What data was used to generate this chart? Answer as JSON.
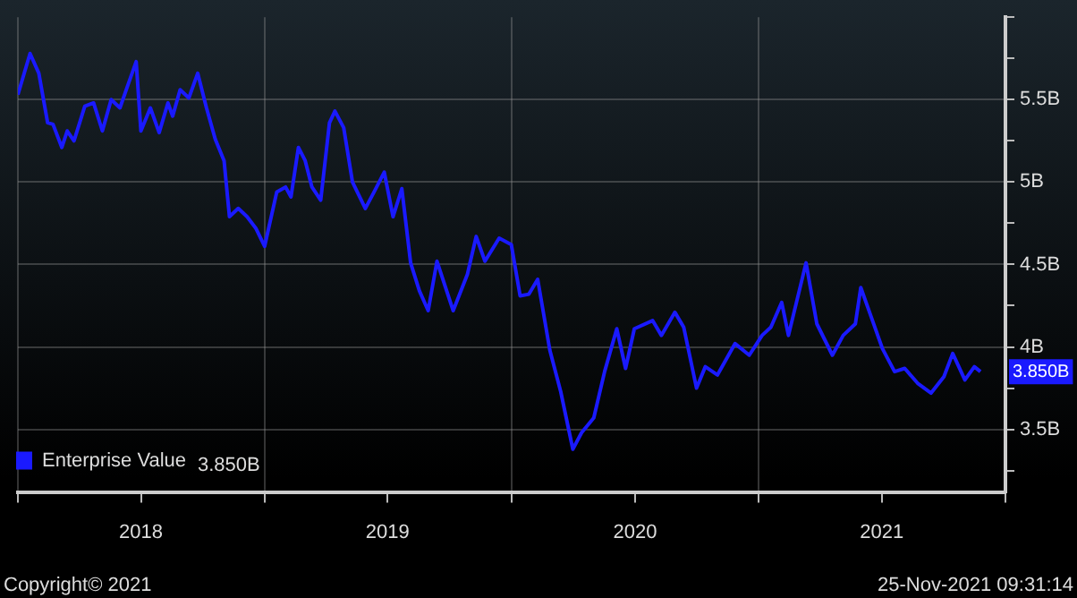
{
  "chart_data": {
    "type": "line",
    "annotations": [
      "Copyright© 2021",
      "25-Nov-2021 09:31:14"
    ],
    "x": [
      "2018-01-01",
      "2018-01-19",
      "2018-02-01",
      "2018-02-14",
      "2018-02-22",
      "2018-03-07",
      "2018-03-15",
      "2018-03-25",
      "2018-04-10",
      "2018-04-23",
      "2018-05-06",
      "2018-05-19",
      "2018-06-01",
      "2018-06-12",
      "2018-06-25",
      "2018-07-02",
      "2018-07-16",
      "2018-07-29",
      "2018-08-11",
      "2018-08-18",
      "2018-08-29",
      "2018-09-11",
      "2018-09-24",
      "2018-10-07",
      "2018-10-20",
      "2018-11-02",
      "2018-11-10",
      "2018-11-23",
      "2018-12-06",
      "2018-12-19",
      "2019-01-01",
      "2019-01-19",
      "2019-02-01",
      "2019-02-09",
      "2019-02-20",
      "2019-03-02",
      "2019-03-12",
      "2019-03-25",
      "2019-04-07",
      "2019-04-15",
      "2019-04-28",
      "2019-05-11",
      "2019-05-30",
      "2019-06-12",
      "2019-06-27",
      "2019-07-10",
      "2019-07-23",
      "2019-08-05",
      "2019-08-18",
      "2019-08-31",
      "2019-09-13",
      "2019-10-07",
      "2019-10-28",
      "2019-11-10",
      "2019-11-23",
      "2019-12-14",
      "2020-01-01",
      "2020-01-14",
      "2020-01-27",
      "2020-02-09",
      "2020-02-27",
      "2020-03-14",
      "2020-04-01",
      "2020-04-14",
      "2020-05-02",
      "2020-05-18",
      "2020-06-05",
      "2020-06-18",
      "2020-07-01",
      "2020-07-28",
      "2020-08-10",
      "2020-08-30",
      "2020-09-12",
      "2020-10-01",
      "2020-10-14",
      "2020-11-01",
      "2020-11-27",
      "2020-12-18",
      "2021-01-06",
      "2021-01-19",
      "2021-02-04",
      "2021-02-14",
      "2021-03-12",
      "2021-03-28",
      "2021-04-20",
      "2021-05-06",
      "2021-05-24",
      "2021-06-01",
      "2021-06-14",
      "2021-07-03",
      "2021-07-21",
      "2021-08-05",
      "2021-08-24",
      "2021-09-13",
      "2021-10-02",
      "2021-10-15",
      "2021-11-02",
      "2021-11-16",
      "2021-11-25"
    ],
    "series": [
      {
        "name": "Enterprise Value",
        "color": "#1a1aff",
        "values": [
          5.53,
          5.78,
          5.66,
          5.36,
          5.35,
          5.21,
          5.31,
          5.25,
          5.46,
          5.48,
          5.31,
          5.5,
          5.45,
          5.58,
          5.73,
          5.31,
          5.45,
          5.3,
          5.48,
          5.4,
          5.56,
          5.51,
          5.66,
          5.45,
          5.26,
          5.13,
          4.79,
          4.84,
          4.79,
          4.72,
          4.61,
          4.94,
          4.97,
          4.91,
          5.21,
          5.13,
          4.97,
          4.89,
          5.36,
          5.43,
          5.33,
          5.0,
          4.84,
          4.94,
          5.06,
          4.79,
          4.96,
          4.51,
          4.34,
          4.22,
          4.52,
          4.22,
          4.44,
          4.67,
          4.52,
          4.66,
          4.62,
          4.31,
          4.32,
          4.41,
          3.98,
          3.73,
          3.38,
          3.48,
          3.57,
          3.85,
          4.11,
          3.87,
          4.11,
          4.16,
          4.07,
          4.21,
          4.12,
          3.75,
          3.88,
          3.83,
          4.02,
          3.95,
          4.07,
          4.12,
          4.27,
          4.07,
          4.51,
          4.14,
          3.95,
          4.07,
          4.14,
          4.36,
          4.21,
          3.99,
          3.85,
          3.87,
          3.78,
          3.72,
          3.82,
          3.96,
          3.8,
          3.88,
          3.85
        ],
        "value_labels": [
          null,
          null,
          null,
          null,
          null,
          null,
          null,
          null,
          null,
          null,
          null,
          null,
          null,
          null,
          null,
          null,
          null,
          null,
          null,
          null,
          null,
          null,
          null,
          null,
          null,
          null,
          null,
          null,
          null,
          null,
          null,
          null,
          null,
          null,
          null,
          null,
          null,
          null,
          null,
          null,
          null,
          null,
          null,
          null,
          null,
          null,
          null,
          null,
          null,
          null,
          null,
          null,
          null,
          null,
          null,
          null,
          null,
          null,
          null,
          null,
          null,
          null,
          null,
          null,
          null,
          null,
          null,
          null,
          null,
          null,
          null,
          null,
          null,
          null,
          null,
          null,
          null,
          null,
          null,
          null,
          null,
          null,
          null,
          null,
          null,
          null,
          null,
          null,
          null,
          null,
          null,
          null,
          null,
          null,
          null,
          null,
          null,
          null,
          "3.850B"
        ]
      }
    ],
    "xlim": [
      "2018-01-01",
      "2022-01-01"
    ],
    "xticks": [
      {
        "value": "2018-01-01",
        "label": null
      },
      {
        "value": "2018-07-02",
        "label": "2018"
      },
      {
        "value": "2019-01-01",
        "label": null
      },
      {
        "value": "2019-07-02",
        "label": "2019"
      },
      {
        "value": "2020-01-01",
        "label": null
      },
      {
        "value": "2020-07-02",
        "label": "2020"
      },
      {
        "value": "2021-01-01",
        "label": null
      },
      {
        "value": "2021-07-02",
        "label": "2021"
      },
      {
        "value": "2022-01-01",
        "label": null
      }
    ],
    "ylim": [
      3.12,
      6.0
    ],
    "yticks": [
      {
        "value": 3.25,
        "label": null
      },
      {
        "value": 3.5,
        "label": "3.5B"
      },
      {
        "value": 3.75,
        "label": null
      },
      {
        "value": 4.0,
        "label": "4B"
      },
      {
        "value": 4.25,
        "label": null
      },
      {
        "value": 4.5,
        "label": "4.5B"
      },
      {
        "value": 4.75,
        "label": null
      },
      {
        "value": 5.0,
        "label": "5B"
      },
      {
        "value": 5.25,
        "label": null
      },
      {
        "value": 5.5,
        "label": "5.5B"
      },
      {
        "value": 5.75,
        "label": null
      },
      {
        "value": 6.0,
        "label": null
      }
    ],
    "grid": true,
    "legend": "bottom left",
    "marker": "none",
    "line_style": "solid"
  }
}
